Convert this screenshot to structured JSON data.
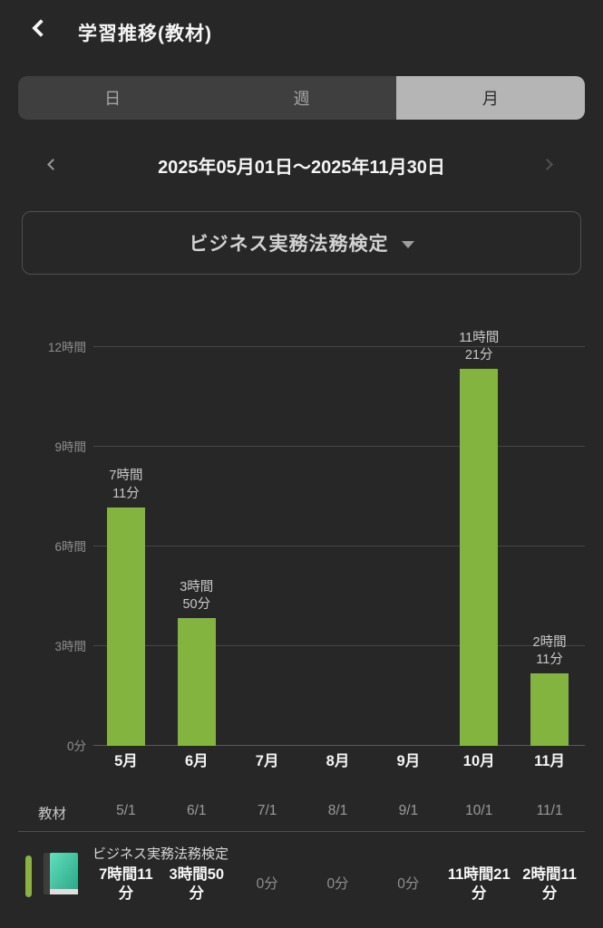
{
  "header": {
    "title": "学習推移(教材)",
    "back_icon": "chevron-left"
  },
  "tabs": [
    {
      "key": "day",
      "label": "日",
      "selected": false
    },
    {
      "key": "week",
      "label": "週",
      "selected": false
    },
    {
      "key": "month",
      "label": "月",
      "selected": true
    }
  ],
  "date_nav": {
    "prev_icon": "chevron-left",
    "range": "2025年05月01日〜2025年11月30日",
    "next_icon": "chevron-right"
  },
  "material_selector": {
    "label": "ビジネス実務法務検定",
    "caret_icon": "caret-down"
  },
  "chart_data": {
    "type": "bar",
    "title": "",
    "xlabel": "",
    "ylabel": "",
    "categories": [
      "5月",
      "6月",
      "7月",
      "8月",
      "9月",
      "10月",
      "11月"
    ],
    "values_minutes": [
      431,
      230,
      0,
      0,
      0,
      681,
      131
    ],
    "values_labels": [
      "7時間11分",
      "3時間50分",
      "0分",
      "0分",
      "0分",
      "11時間21分",
      "2時間11分"
    ],
    "bar_labels": [
      [
        "7時間",
        "11分"
      ],
      [
        "3時間",
        "50分"
      ],
      null,
      null,
      null,
      [
        "11時間",
        "21分"
      ],
      [
        "2時間",
        "11分"
      ]
    ],
    "y_ticks": [
      {
        "label": "12時間",
        "minutes": 720
      },
      {
        "label": "9時間",
        "minutes": 540
      },
      {
        "label": "6時間",
        "minutes": 360
      },
      {
        "label": "3時間",
        "minutes": 180
      },
      {
        "label": "0分",
        "minutes": 0
      }
    ],
    "ylim_minutes": [
      0,
      720
    ],
    "grid": true,
    "legend": false,
    "bar_color": "#83b440",
    "series_name": "ビジネス実務法務検定"
  },
  "table": {
    "row_header": "教材",
    "columns": [
      "5/1",
      "6/1",
      "7/1",
      "8/1",
      "9/1",
      "10/1",
      "11/1"
    ]
  },
  "material_row": {
    "title": "ビジネス実務法務検定",
    "values": [
      "7時間11分",
      "3時間50分",
      "0分",
      "0分",
      "0分",
      "11時間21分",
      "2時間11分"
    ],
    "emphasis": [
      true,
      true,
      false,
      false,
      false,
      true,
      true
    ],
    "book_icon": "book"
  },
  "colors": {
    "background": "#272727",
    "bar": "#83b440",
    "accent": "#8ab33f",
    "selected_tab_bg": "#b5b5b5",
    "book_cover": "#3fcaa4"
  }
}
